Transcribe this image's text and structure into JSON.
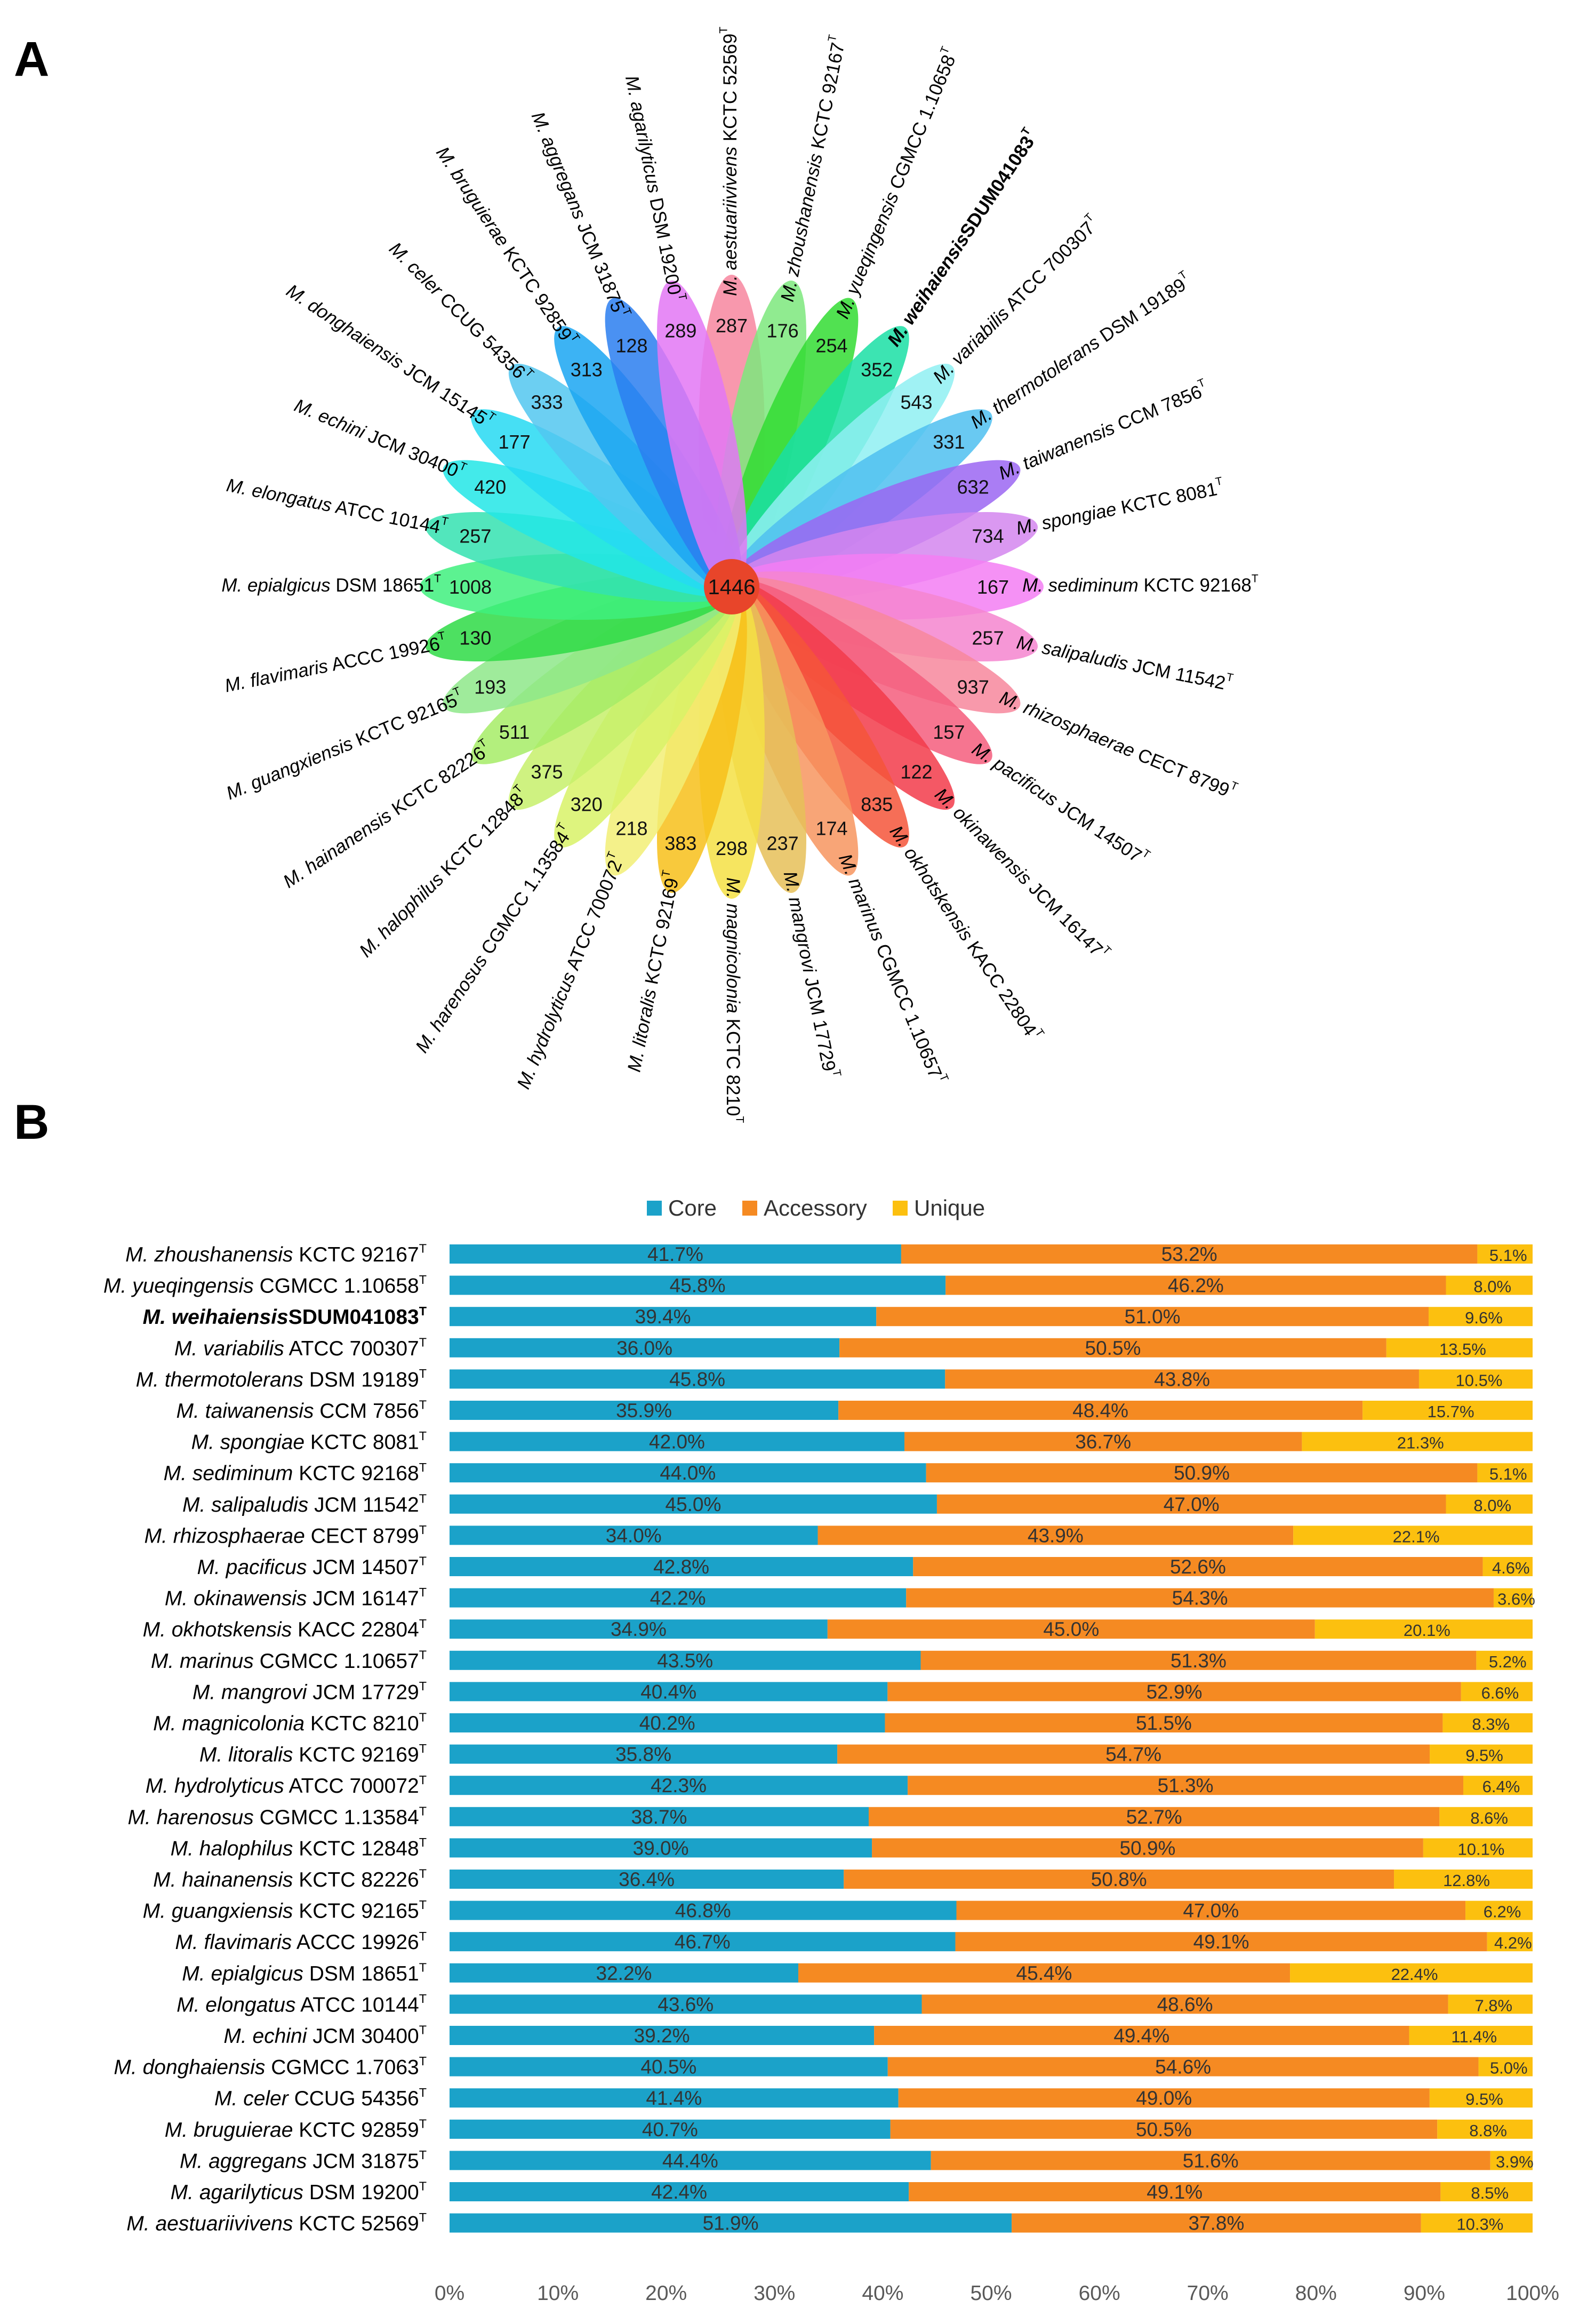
{
  "panel_a_label": "A",
  "panel_b_label": "B",
  "chart_data": [
    {
      "type": "flower",
      "core_value": "1446",
      "petals": [
        {
          "genus": "M.",
          "epithet": "aestuariivivens",
          "strain": "KCTC 52569",
          "sup": "T",
          "bold": false,
          "value": "287",
          "color": "#f7869f"
        },
        {
          "genus": "M.",
          "epithet": "zhoushanensis",
          "strain": "KCTC 92167",
          "sup": "T",
          "bold": false,
          "value": "176",
          "color": "#7ce77c"
        },
        {
          "genus": "M.",
          "epithet": "yueqingensis",
          "strain": "CGMCC 1.10658",
          "sup": "T",
          "bold": false,
          "value": "254",
          "color": "#33dc33"
        },
        {
          "genus": "M.",
          "epithet": "weihaiensis",
          "strain": "SDUM041083",
          "sup": "T",
          "bold": true,
          "value": "352",
          "color": "#1adfa5"
        },
        {
          "genus": "M.",
          "epithet": "variabilis",
          "strain": "ATCC 700307",
          "sup": "T",
          "bold": false,
          "value": "543",
          "color": "#8ff0f2"
        },
        {
          "genus": "M.",
          "epithet": "thermotolerans",
          "strain": "DSM 19189",
          "sup": "T",
          "bold": false,
          "value": "331",
          "color": "#4fc0f0"
        },
        {
          "genus": "M.",
          "epithet": "taiwanensis",
          "strain": "CCM 7856",
          "sup": "T",
          "bold": false,
          "value": "632",
          "color": "#9b66f2"
        },
        {
          "genus": "M.",
          "epithet": "spongiae",
          "strain": "KCTC 8081",
          "sup": "T",
          "bold": false,
          "value": "734",
          "color": "#d486ee"
        },
        {
          "genus": "M.",
          "epithet": "sediminum",
          "strain": "KCTC 92168",
          "sup": "T",
          "bold": false,
          "value": "167",
          "color": "#f37ef3"
        },
        {
          "genus": "M.",
          "epithet": "salipaludis",
          "strain": "JCM 11542",
          "sup": "T",
          "bold": false,
          "value": "257",
          "color": "#f585cf"
        },
        {
          "genus": "M.",
          "epithet": "rhizosphaerae",
          "strain": "CECT 8799",
          "sup": "T",
          "bold": false,
          "value": "937",
          "color": "#f7879c"
        },
        {
          "genus": "M.",
          "epithet": "pacificus",
          "strain": "JCM 14507",
          "sup": "T",
          "bold": false,
          "value": "157",
          "color": "#f45d7d"
        },
        {
          "genus": "M.",
          "epithet": "okinawensis",
          "strain": "JCM 16147",
          "sup": "T",
          "bold": false,
          "value": "122",
          "color": "#f23b4a"
        },
        {
          "genus": "M.",
          "epithet": "okhotskensis",
          "strain": "KACC 22804",
          "sup": "T",
          "bold": false,
          "value": "835",
          "color": "#f4553a"
        },
        {
          "genus": "M.",
          "epithet": "marinus",
          "strain": "CGMCC 1.10657",
          "sup": "T",
          "bold": false,
          "value": "174",
          "color": "#f7955f"
        },
        {
          "genus": "M.",
          "epithet": "mangrovi",
          "strain": "JCM 17729",
          "sup": "T",
          "bold": false,
          "value": "237",
          "color": "#e6bf58"
        },
        {
          "genus": "M.",
          "epithet": "magnicolonia",
          "strain": "KCTC 8210",
          "sup": "T",
          "bold": false,
          "value": "298",
          "color": "#f4e044"
        },
        {
          "genus": "M.",
          "epithet": "litoralis",
          "strain": "KCTC 92169",
          "sup": "T",
          "bold": false,
          "value": "383",
          "color": "#f7c01a"
        },
        {
          "genus": "M.",
          "epithet": "hydrolyticus",
          "strain": "ATCC 700072",
          "sup": "T",
          "bold": false,
          "value": "218",
          "color": "#f2ef75"
        },
        {
          "genus": "M.",
          "epithet": "harenosus",
          "strain": "CGMCC 1.13584",
          "sup": "T",
          "bold": false,
          "value": "320",
          "color": "#d8f267"
        },
        {
          "genus": "M.",
          "epithet": "halophilus",
          "strain": "KCTC 12848",
          "sup": "T",
          "bold": false,
          "value": "375",
          "color": "#c7f06b"
        },
        {
          "genus": "M.",
          "epithet": "hainanensis",
          "strain": "KCTC 82226",
          "sup": "T",
          "bold": false,
          "value": "511",
          "color": "#a6ec66"
        },
        {
          "genus": "M.",
          "epithet": "guangxiensis",
          "strain": "KCTC 92165",
          "sup": "T",
          "bold": false,
          "value": "193",
          "color": "#8ee88a"
        },
        {
          "genus": "M.",
          "epithet": "flavimaris",
          "strain": "ACCC 19926",
          "sup": "T",
          "bold": false,
          "value": "130",
          "color": "#2edb45"
        },
        {
          "genus": "M.",
          "epithet": "epialgicus",
          "strain": "DSM 18651",
          "sup": "T",
          "bold": false,
          "value": "1008",
          "color": "#3ff07e"
        },
        {
          "genus": "M.",
          "epithet": "elongatus",
          "strain": "ATCC 10144",
          "sup": "T",
          "bold": false,
          "value": "257",
          "color": "#34e2b0"
        },
        {
          "genus": "M.",
          "epithet": "echini",
          "strain": "JCM 30400",
          "sup": "T",
          "bold": false,
          "value": "420",
          "color": "#22e6e6"
        },
        {
          "genus": "M.",
          "epithet": "donghaiensis",
          "strain": "JCM 15145",
          "sup": "T",
          "bold": false,
          "value": "177",
          "color": "#26d9f2"
        },
        {
          "genus": "M.",
          "epithet": "celer",
          "strain": "CCUG 54356",
          "sup": "T",
          "bold": false,
          "value": "333",
          "color": "#52c7f0"
        },
        {
          "genus": "M.",
          "epithet": "bruguierae",
          "strain": "KCTC 92859",
          "sup": "T",
          "bold": false,
          "value": "313",
          "color": "#1aa6f2"
        },
        {
          "genus": "M.",
          "epithet": "aggregans",
          "strain": "JCM 31875",
          "sup": "T",
          "bold": false,
          "value": "128",
          "color": "#2a7ef0"
        },
        {
          "genus": "M.",
          "epithet": "agarilyticus",
          "strain": "DSM 19200",
          "sup": "T",
          "bold": false,
          "value": "289",
          "color": "#e377f4"
        }
      ]
    },
    {
      "type": "bar",
      "stacked": true,
      "orientation": "horizontal",
      "series": [
        {
          "name": "Core",
          "color": "#1ba2c9"
        },
        {
          "name": "Accessory",
          "color": "#f58a22"
        },
        {
          "name": "Unique",
          "color": "#fcc00f"
        }
      ],
      "xlim": [
        0,
        100
      ],
      "xticks": [
        "0%",
        "10%",
        "20%",
        "30%",
        "40%",
        "50%",
        "60%",
        "70%",
        "80%",
        "90%",
        "100%"
      ],
      "rows": [
        {
          "genus": "M.",
          "epithet": "zhoushanensis",
          "strain": "KCTC 92167",
          "sup": "T",
          "bold": false,
          "core": 41.7,
          "accessory": 53.2,
          "unique": 5.1,
          "labels": [
            "41.7%",
            "53.2%",
            "5.1%"
          ]
        },
        {
          "genus": "M.",
          "epithet": "yueqingensis",
          "strain": "CGMCC 1.10658",
          "sup": "T",
          "bold": false,
          "core": 45.8,
          "accessory": 46.2,
          "unique": 8.0,
          "labels": [
            "45.8%",
            "46.2%",
            "8.0%"
          ]
        },
        {
          "genus": "M.",
          "epithet": "weihaiensis",
          "strain": "SDUM041083",
          "sup": "T",
          "bold": true,
          "core": 39.4,
          "accessory": 51.0,
          "unique": 9.6,
          "labels": [
            "39.4%",
            "51.0%",
            "9.6%"
          ]
        },
        {
          "genus": "M.",
          "epithet": "variabilis",
          "strain": "ATCC 700307",
          "sup": "T",
          "bold": false,
          "core": 36.0,
          "accessory": 50.5,
          "unique": 13.5,
          "labels": [
            "36.0%",
            "50.5%",
            "13.5%"
          ]
        },
        {
          "genus": "M.",
          "epithet": "thermotolerans",
          "strain": "DSM 19189",
          "sup": "T",
          "bold": false,
          "core": 45.8,
          "accessory": 43.8,
          "unique": 10.5,
          "labels": [
            "45.8%",
            "43.8%",
            "10.5%"
          ]
        },
        {
          "genus": "M.",
          "epithet": "taiwanensis",
          "strain": "CCM 7856",
          "sup": "T",
          "bold": false,
          "core": 35.9,
          "accessory": 48.4,
          "unique": 15.7,
          "labels": [
            "35.9%",
            "48.4%",
            "15.7%"
          ]
        },
        {
          "genus": "M.",
          "epithet": "spongiae",
          "strain": "KCTC 8081",
          "sup": "T",
          "bold": false,
          "core": 42.0,
          "accessory": 36.7,
          "unique": 21.3,
          "labels": [
            "42.0%",
            "36.7%",
            "21.3%"
          ]
        },
        {
          "genus": "M.",
          "epithet": "sediminum",
          "strain": "KCTC 92168",
          "sup": "T",
          "bold": false,
          "core": 44.0,
          "accessory": 50.9,
          "unique": 5.1,
          "labels": [
            "44.0%",
            "50.9%",
            "5.1%"
          ]
        },
        {
          "genus": "M.",
          "epithet": "salipaludis",
          "strain": "JCM 11542",
          "sup": "T",
          "bold": false,
          "core": 45.0,
          "accessory": 47.0,
          "unique": 8.0,
          "labels": [
            "45.0%",
            "47.0%",
            "8.0%"
          ]
        },
        {
          "genus": "M.",
          "epithet": "rhizosphaerae",
          "strain": "CECT 8799",
          "sup": "T",
          "bold": false,
          "core": 34.0,
          "accessory": 43.9,
          "unique": 22.1,
          "labels": [
            "34.0%",
            "43.9%",
            "22.1%"
          ]
        },
        {
          "genus": "M.",
          "epithet": "pacificus",
          "strain": "JCM 14507",
          "sup": "T",
          "bold": false,
          "core": 42.8,
          "accessory": 52.6,
          "unique": 4.6,
          "labels": [
            "42.8%",
            "52.6%",
            "4.6%"
          ]
        },
        {
          "genus": "M.",
          "epithet": "okinawensis",
          "strain": "JCM 16147",
          "sup": "T",
          "bold": false,
          "core": 42.2,
          "accessory": 54.3,
          "unique": 3.6,
          "labels": [
            "42.2%",
            "54.3%",
            "3.6%"
          ]
        },
        {
          "genus": "M.",
          "epithet": "okhotskensis",
          "strain": "KACC 22804",
          "sup": "T",
          "bold": false,
          "core": 34.9,
          "accessory": 45.0,
          "unique": 20.1,
          "labels": [
            "34.9%",
            "45.0%",
            "20.1%"
          ]
        },
        {
          "genus": "M.",
          "epithet": "marinus",
          "strain": "CGMCC 1.10657",
          "sup": "T",
          "bold": false,
          "core": 43.5,
          "accessory": 51.3,
          "unique": 5.2,
          "labels": [
            "43.5%",
            "51.3%",
            "5.2%"
          ]
        },
        {
          "genus": "M.",
          "epithet": "mangrovi",
          "strain": "JCM 17729",
          "sup": "T",
          "bold": false,
          "core": 40.4,
          "accessory": 52.9,
          "unique": 6.6,
          "labels": [
            "40.4%",
            "52.9%",
            "6.6%"
          ]
        },
        {
          "genus": "M.",
          "epithet": "magnicolonia",
          "strain": "KCTC 8210",
          "sup": "T",
          "bold": false,
          "core": 40.2,
          "accessory": 51.5,
          "unique": 8.3,
          "labels": [
            "40.2%",
            "51.5%",
            "8.3%"
          ]
        },
        {
          "genus": "M.",
          "epithet": "litoralis",
          "strain": "KCTC 92169",
          "sup": "T",
          "bold": false,
          "core": 35.8,
          "accessory": 54.7,
          "unique": 9.5,
          "labels": [
            "35.8%",
            "54.7%",
            "9.5%"
          ]
        },
        {
          "genus": "M.",
          "epithet": "hydrolyticus",
          "strain": "ATCC 700072",
          "sup": "T",
          "bold": false,
          "core": 42.3,
          "accessory": 51.3,
          "unique": 6.4,
          "labels": [
            "42.3%",
            "51.3%",
            "6.4%"
          ]
        },
        {
          "genus": "M.",
          "epithet": "harenosus",
          "strain": "CGMCC 1.13584",
          "sup": "T",
          "bold": false,
          "core": 38.7,
          "accessory": 52.7,
          "unique": 8.6,
          "labels": [
            "38.7%",
            "52.7%",
            "8.6%"
          ]
        },
        {
          "genus": "M.",
          "epithet": "halophilus",
          "strain": "KCTC 12848",
          "sup": "T",
          "bold": false,
          "core": 39.0,
          "accessory": 50.9,
          "unique": 10.1,
          "labels": [
            "39.0%",
            "50.9%",
            "10.1%"
          ]
        },
        {
          "genus": "M.",
          "epithet": "hainanensis",
          "strain": "KCTC 82226",
          "sup": "T",
          "bold": false,
          "core": 36.4,
          "accessory": 50.8,
          "unique": 12.8,
          "labels": [
            "36.4%",
            "50.8%",
            "12.8%"
          ]
        },
        {
          "genus": "M.",
          "epithet": "guangxiensis",
          "strain": "KCTC 92165",
          "sup": "T",
          "bold": false,
          "core": 46.8,
          "accessory": 47.0,
          "unique": 6.2,
          "labels": [
            "46.8%",
            "47.0%",
            "6.2%"
          ]
        },
        {
          "genus": "M.",
          "epithet": "flavimaris",
          "strain": "ACCC 19926",
          "sup": "T",
          "bold": false,
          "core": 46.7,
          "accessory": 49.1,
          "unique": 4.2,
          "labels": [
            "46.7%",
            "49.1%",
            "4.2%"
          ]
        },
        {
          "genus": "M.",
          "epithet": "epialgicus",
          "strain": "DSM 18651",
          "sup": "T",
          "bold": false,
          "core": 32.2,
          "accessory": 45.4,
          "unique": 22.4,
          "labels": [
            "32.2%",
            "45.4%",
            "22.4%"
          ]
        },
        {
          "genus": "M.",
          "epithet": "elongatus",
          "strain": "ATCC 10144",
          "sup": "T",
          "bold": false,
          "core": 43.6,
          "accessory": 48.6,
          "unique": 7.8,
          "labels": [
            "43.6%",
            "48.6%",
            "7.8%"
          ]
        },
        {
          "genus": "M.",
          "epithet": "echini",
          "strain": "JCM 30400",
          "sup": "T",
          "bold": false,
          "core": 39.2,
          "accessory": 49.4,
          "unique": 11.4,
          "labels": [
            "39.2%",
            "49.4%",
            "11.4%"
          ]
        },
        {
          "genus": "M.",
          "epithet": "donghaiensis",
          "strain": "CGMCC 1.7063",
          "sup": "T",
          "bold": false,
          "core": 40.5,
          "accessory": 54.6,
          "unique": 5.0,
          "labels": [
            "40.5%",
            "54.6%",
            "5.0%"
          ]
        },
        {
          "genus": "M.",
          "epithet": "celer",
          "strain": "CCUG 54356",
          "sup": "T",
          "bold": false,
          "core": 41.4,
          "accessory": 49.0,
          "unique": 9.5,
          "labels": [
            "41.4%",
            "49.0%",
            "9.5%"
          ]
        },
        {
          "genus": "M.",
          "epithet": "bruguierae",
          "strain": "KCTC 92859",
          "sup": "T",
          "bold": false,
          "core": 40.7,
          "accessory": 50.5,
          "unique": 8.8,
          "labels": [
            "40.7%",
            "50.5%",
            "8.8%"
          ]
        },
        {
          "genus": "M.",
          "epithet": "aggregans",
          "strain": "JCM 31875",
          "sup": "T",
          "bold": false,
          "core": 44.4,
          "accessory": 51.6,
          "unique": 3.9,
          "labels": [
            "44.4%",
            "51.6%",
            "3.9%"
          ]
        },
        {
          "genus": "M.",
          "epithet": "agarilyticus",
          "strain": "DSM 19200",
          "sup": "T",
          "bold": false,
          "core": 42.4,
          "accessory": 49.1,
          "unique": 8.5,
          "labels": [
            "42.4%",
            "49.1%",
            "8.5%"
          ]
        },
        {
          "genus": "M.",
          "epithet": "aestuariivivens",
          "strain": "KCTC 52569",
          "sup": "T",
          "bold": false,
          "core": 51.9,
          "accessory": 37.8,
          "unique": 10.3,
          "labels": [
            "51.9%",
            "37.8%",
            "10.3%"
          ]
        }
      ]
    }
  ]
}
